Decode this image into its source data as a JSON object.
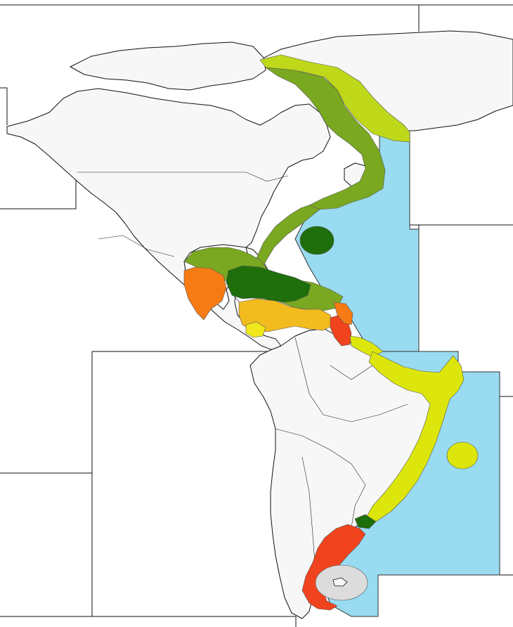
{
  "colors": {
    "background": "#ffffff",
    "land": "#f7f7f7",
    "outline": "#111111",
    "ocean": "#99dbf0",
    "dark_green": "#1e6e0c",
    "green": "#7aa821",
    "yellow_green": "#bfd81a",
    "yellow": "#dde60c",
    "gold": "#f2bb1e",
    "light_yellow": "#f1e81e",
    "orange": "#f77b14",
    "red": "#f1431e",
    "grey": "#dcdcdc"
  },
  "map": {
    "regions": [
      {
        "name": "greenland-east-coast-zone",
        "color": "yellow_green"
      },
      {
        "name": "labrador-coast-zone",
        "color": "green"
      },
      {
        "name": "us-east-coast-zone",
        "color": "green"
      },
      {
        "name": "bermuda-zone",
        "color": "dark_green"
      },
      {
        "name": "gulf-of-mexico-zone",
        "color": "green"
      },
      {
        "name": "western-caribbean-zone",
        "color": "orange"
      },
      {
        "name": "greater-antilles-zone",
        "color": "dark_green"
      },
      {
        "name": "central-caribbean-zone",
        "color": "gold"
      },
      {
        "name": "lesser-antilles-zone",
        "color": "red"
      },
      {
        "name": "guianas-coast-zone",
        "color": "yellow"
      },
      {
        "name": "brazil-coast-zone",
        "color": "yellow"
      },
      {
        "name": "trindade-island-zone",
        "color": "yellow"
      },
      {
        "name": "uruguay-coast-zone",
        "color": "dark_green"
      },
      {
        "name": "patagonia-coast-zone",
        "color": "red"
      },
      {
        "name": "falkland-islands-zone",
        "color": "grey"
      }
    ]
  }
}
